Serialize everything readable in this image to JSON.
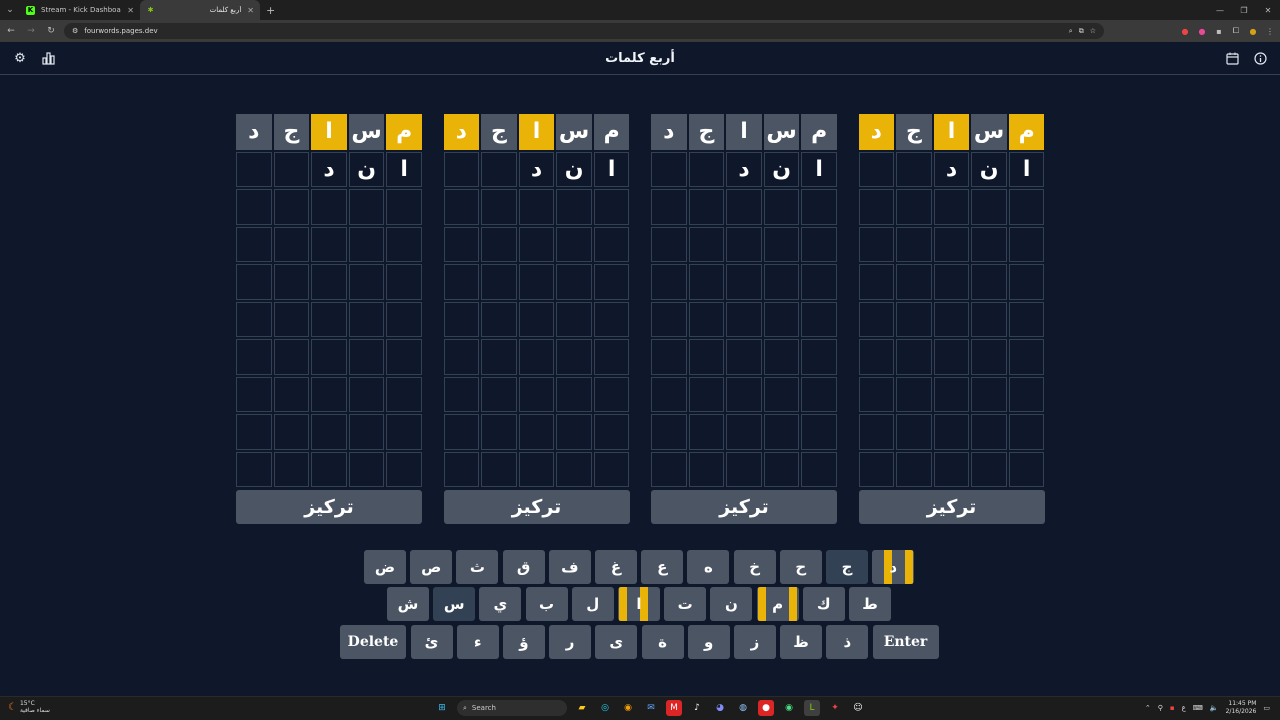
{
  "browser": {
    "tabs": [
      {
        "title": "Stream - Kick Dashboard",
        "favicon": "kick-icon",
        "active": false
      },
      {
        "title": "أربع كلمات",
        "favicon": "fourwords-icon",
        "active": true
      }
    ],
    "url": "fourwords.pages.dev"
  },
  "app": {
    "title": "أربع كلمات",
    "icons": {
      "settings": "gear-icon",
      "stats": "bar-chart-icon",
      "calendar": "calendar-icon",
      "info": "info-icon"
    }
  },
  "boards": [
    {
      "rows": [
        [
          {
            "l": "د",
            "s": "gray"
          },
          {
            "l": "ج",
            "s": "gray"
          },
          {
            "l": "ا",
            "s": "yellow"
          },
          {
            "l": "س",
            "s": "gray"
          },
          {
            "l": "م",
            "s": "yellow"
          }
        ],
        [
          {
            "l": "",
            "s": "empty"
          },
          {
            "l": "",
            "s": "empty"
          },
          {
            "l": "د",
            "s": "empty"
          },
          {
            "l": "ن",
            "s": "empty"
          },
          {
            "l": "ا",
            "s": "empty"
          }
        ]
      ],
      "focus_label": "تركيز"
    },
    {
      "rows": [
        [
          {
            "l": "د",
            "s": "yellow"
          },
          {
            "l": "ج",
            "s": "gray"
          },
          {
            "l": "ا",
            "s": "yellow"
          },
          {
            "l": "س",
            "s": "gray"
          },
          {
            "l": "م",
            "s": "gray"
          }
        ],
        [
          {
            "l": "",
            "s": "empty"
          },
          {
            "l": "",
            "s": "empty"
          },
          {
            "l": "د",
            "s": "empty"
          },
          {
            "l": "ن",
            "s": "empty"
          },
          {
            "l": "ا",
            "s": "empty"
          }
        ]
      ],
      "focus_label": "تركيز"
    },
    {
      "rows": [
        [
          {
            "l": "د",
            "s": "gray"
          },
          {
            "l": "ج",
            "s": "gray"
          },
          {
            "l": "ا",
            "s": "gray"
          },
          {
            "l": "س",
            "s": "gray"
          },
          {
            "l": "م",
            "s": "gray"
          }
        ],
        [
          {
            "l": "",
            "s": "empty"
          },
          {
            "l": "",
            "s": "empty"
          },
          {
            "l": "د",
            "s": "empty"
          },
          {
            "l": "ن",
            "s": "empty"
          },
          {
            "l": "ا",
            "s": "empty"
          }
        ]
      ],
      "focus_label": "تركيز"
    },
    {
      "rows": [
        [
          {
            "l": "د",
            "s": "yellow"
          },
          {
            "l": "ج",
            "s": "gray"
          },
          {
            "l": "ا",
            "s": "yellow"
          },
          {
            "l": "س",
            "s": "gray"
          },
          {
            "l": "م",
            "s": "yellow"
          }
        ],
        [
          {
            "l": "",
            "s": "empty"
          },
          {
            "l": "",
            "s": "empty"
          },
          {
            "l": "د",
            "s": "empty"
          },
          {
            "l": "ن",
            "s": "empty"
          },
          {
            "l": "ا",
            "s": "empty"
          }
        ]
      ],
      "focus_label": "تركيز"
    }
  ],
  "keyboard": {
    "row1": [
      {
        "k": "ض",
        "s": "n"
      },
      {
        "k": "ص",
        "s": "n"
      },
      {
        "k": "ث",
        "s": "n"
      },
      {
        "k": "ق",
        "s": "n"
      },
      {
        "k": "ف",
        "s": "n"
      },
      {
        "k": "غ",
        "s": "n"
      },
      {
        "k": "ع",
        "s": "n"
      },
      {
        "k": "ه",
        "s": "n"
      },
      {
        "k": "خ",
        "s": "n"
      },
      {
        "k": "ح",
        "s": "n"
      },
      {
        "k": "ج",
        "s": "dark"
      },
      {
        "k": "د",
        "s": "y13"
      }
    ],
    "row2": [
      {
        "k": "ش",
        "s": "n"
      },
      {
        "k": "س",
        "s": "dark"
      },
      {
        "k": "ي",
        "s": "n"
      },
      {
        "k": "ب",
        "s": "n"
      },
      {
        "k": "ل",
        "s": "n"
      },
      {
        "k": "ا",
        "s": "y24"
      },
      {
        "k": "ت",
        "s": "n"
      },
      {
        "k": "ن",
        "s": "n"
      },
      {
        "k": "م",
        "s": "y14"
      },
      {
        "k": "ك",
        "s": "n"
      },
      {
        "k": "ط",
        "s": "n"
      }
    ],
    "row3": [
      {
        "k": "Delete",
        "s": "wide"
      },
      {
        "k": "ئ",
        "s": "n"
      },
      {
        "k": "ء",
        "s": "n"
      },
      {
        "k": "ؤ",
        "s": "n"
      },
      {
        "k": "ر",
        "s": "n"
      },
      {
        "k": "ى",
        "s": "n"
      },
      {
        "k": "ة",
        "s": "n"
      },
      {
        "k": "و",
        "s": "n"
      },
      {
        "k": "ز",
        "s": "n"
      },
      {
        "k": "ظ",
        "s": "n"
      },
      {
        "k": "ذ",
        "s": "n"
      },
      {
        "k": "Enter",
        "s": "wide"
      }
    ]
  },
  "taskbar": {
    "weather_temp": "15°C",
    "weather_desc": "سماء صافية",
    "search_label": "Search",
    "time": "11:45 PM",
    "date": "2/16/2026",
    "lang": "ع"
  },
  "colors": {
    "yellow": "#eab308",
    "gray": "#4b5563",
    "bg": "#0f172a"
  }
}
